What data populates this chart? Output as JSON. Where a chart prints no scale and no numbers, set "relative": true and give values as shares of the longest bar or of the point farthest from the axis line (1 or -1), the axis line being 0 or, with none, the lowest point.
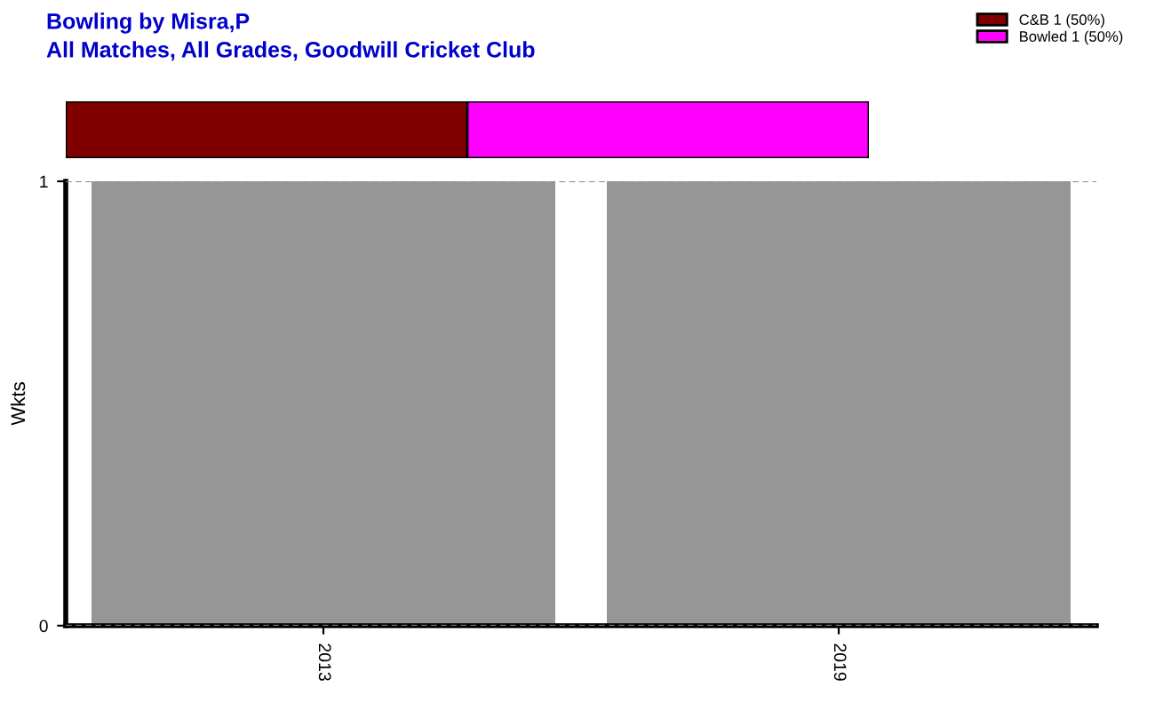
{
  "chart_data": [
    {
      "type": "bar",
      "title": "Bowling by Misra,P",
      "subtitle": "All Matches, All Grades, Goodwill Cricket Club",
      "orientation": "horizontal",
      "stacked": true,
      "categories": [
        null
      ],
      "series": [
        {
          "name": "C&B 1 (50%)",
          "color": "#800000",
          "values": [
            0.5
          ]
        },
        {
          "name": "Bowled 1 (50%)",
          "color": "#ff00ff",
          "values": [
            0.5
          ]
        }
      ],
      "relative": true,
      "legend": "top right"
    },
    {
      "type": "bar",
      "categories": [
        "2013",
        "2019"
      ],
      "values": [
        1,
        1
      ],
      "color": "#969696",
      "ylabel": "Wkts",
      "ylim": [
        0,
        1
      ],
      "yticks": [
        0,
        1
      ],
      "grid": "y"
    }
  ]
}
